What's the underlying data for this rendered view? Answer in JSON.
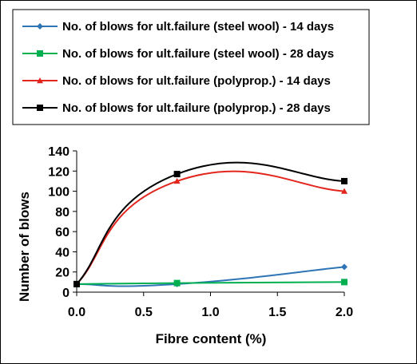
{
  "chart_data": {
    "type": "line",
    "title": "",
    "xlabel": "Fibre content (%)",
    "ylabel": "Number of blows",
    "xlim": [
      0,
      2
    ],
    "ylim": [
      0,
      140
    ],
    "x_ticks": [
      "0.0",
      "0.5",
      "1.0",
      "1.5",
      "2.0"
    ],
    "y_ticks": [
      "0",
      "20",
      "40",
      "60",
      "80",
      "100",
      "120",
      "140"
    ],
    "grid": false,
    "smooth": true,
    "legend_position": "top",
    "series": [
      {
        "name": "No. of blows for ult.failure (steel wool) - 14 days",
        "color": "#2E75B6",
        "marker": "diamond",
        "x": [
          0,
          0.75,
          2.0
        ],
        "y": [
          8,
          8,
          25
        ]
      },
      {
        "name": "No. of blows for ult.failure (steel wool) - 28 days",
        "color": "#00B050",
        "marker": "square",
        "x": [
          0,
          0.75,
          2.0
        ],
        "y": [
          8,
          9,
          10
        ]
      },
      {
        "name": "No. of blows for ult.failure (polyprop.) - 14 days",
        "color": "#E3261D",
        "marker": "triangle",
        "x": [
          0,
          0.75,
          2.0
        ],
        "y": [
          8,
          110,
          100
        ]
      },
      {
        "name": "No. of blows for ult.failure (polyprop.) - 28 days",
        "color": "#000000",
        "marker": "square",
        "x": [
          0,
          0.75,
          2.0
        ],
        "y": [
          8,
          117,
          110
        ]
      }
    ]
  }
}
